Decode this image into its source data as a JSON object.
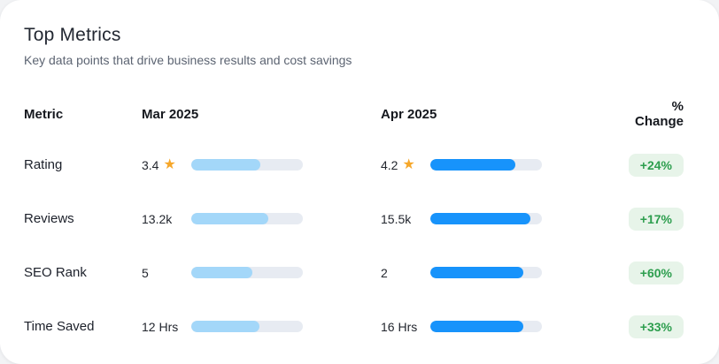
{
  "card": {
    "title": "Top Metrics",
    "subtitle": "Key data points that drive business results and cost savings"
  },
  "headers": {
    "metric": "Metric",
    "mar": "Mar 2025",
    "apr": "Apr 2025",
    "change": "% Change"
  },
  "icons": {
    "star": "★"
  },
  "table": {
    "rows": [
      {
        "metric": "Rating",
        "mar_value": "3.4",
        "mar_pct": 62,
        "apr_value": "4.2",
        "apr_pct": 76,
        "change": "+24%"
      },
      {
        "metric": "Reviews",
        "mar_value": "13.2k",
        "mar_pct": 69,
        "apr_value": "15.5k",
        "apr_pct": 90,
        "change": "+17%"
      },
      {
        "metric": "SEO Rank",
        "mar_value": "5",
        "mar_pct": 55,
        "apr_value": "2",
        "apr_pct": 83,
        "change": "+60%"
      },
      {
        "metric": "Time Saved",
        "mar_value": "12 Hrs",
        "mar_pct": 61,
        "apr_value": "16 Hrs",
        "apr_pct": 83,
        "change": "+33%"
      }
    ]
  },
  "chart_data": {
    "type": "table",
    "title": "Top Metrics",
    "subtitle": "Key data points that drive business results and cost savings",
    "columns": [
      "Metric",
      "Mar 2025",
      "Apr 2025",
      "% Change"
    ],
    "rows": [
      {
        "metric": "Rating",
        "mar": 3.4,
        "apr": 4.2,
        "change_pct": 24,
        "mar_bar_fill_pct": 62,
        "apr_bar_fill_pct": 76,
        "unit": "stars"
      },
      {
        "metric": "Reviews",
        "mar": 13200,
        "apr": 15500,
        "change_pct": 17,
        "mar_bar_fill_pct": 69,
        "apr_bar_fill_pct": 90,
        "unit": "count"
      },
      {
        "metric": "SEO Rank",
        "mar": 5,
        "apr": 2,
        "change_pct": 60,
        "mar_bar_fill_pct": 55,
        "apr_bar_fill_pct": 83,
        "unit": "rank"
      },
      {
        "metric": "Time Saved",
        "mar": 12,
        "apr": 16,
        "change_pct": 33,
        "mar_bar_fill_pct": 61,
        "apr_bar_fill_pct": 83,
        "unit": "hours"
      }
    ],
    "legend_position": "none",
    "grid": false
  },
  "colors": {
    "page_bg": "#f2f3f5",
    "card_bg": "#ffffff",
    "title": "#232832",
    "subtitle": "#5c6472",
    "header_text": "#15181e",
    "metric_text": "#1c202a",
    "value_text": "#23272f",
    "mar_fill": "#a3d7f9",
    "apr_fill": "#1793fb",
    "track": "#e7ebf2",
    "badge_bg": "#e7f4e9",
    "badge_text": "#2d9e4e",
    "star": "#f6a72a"
  }
}
